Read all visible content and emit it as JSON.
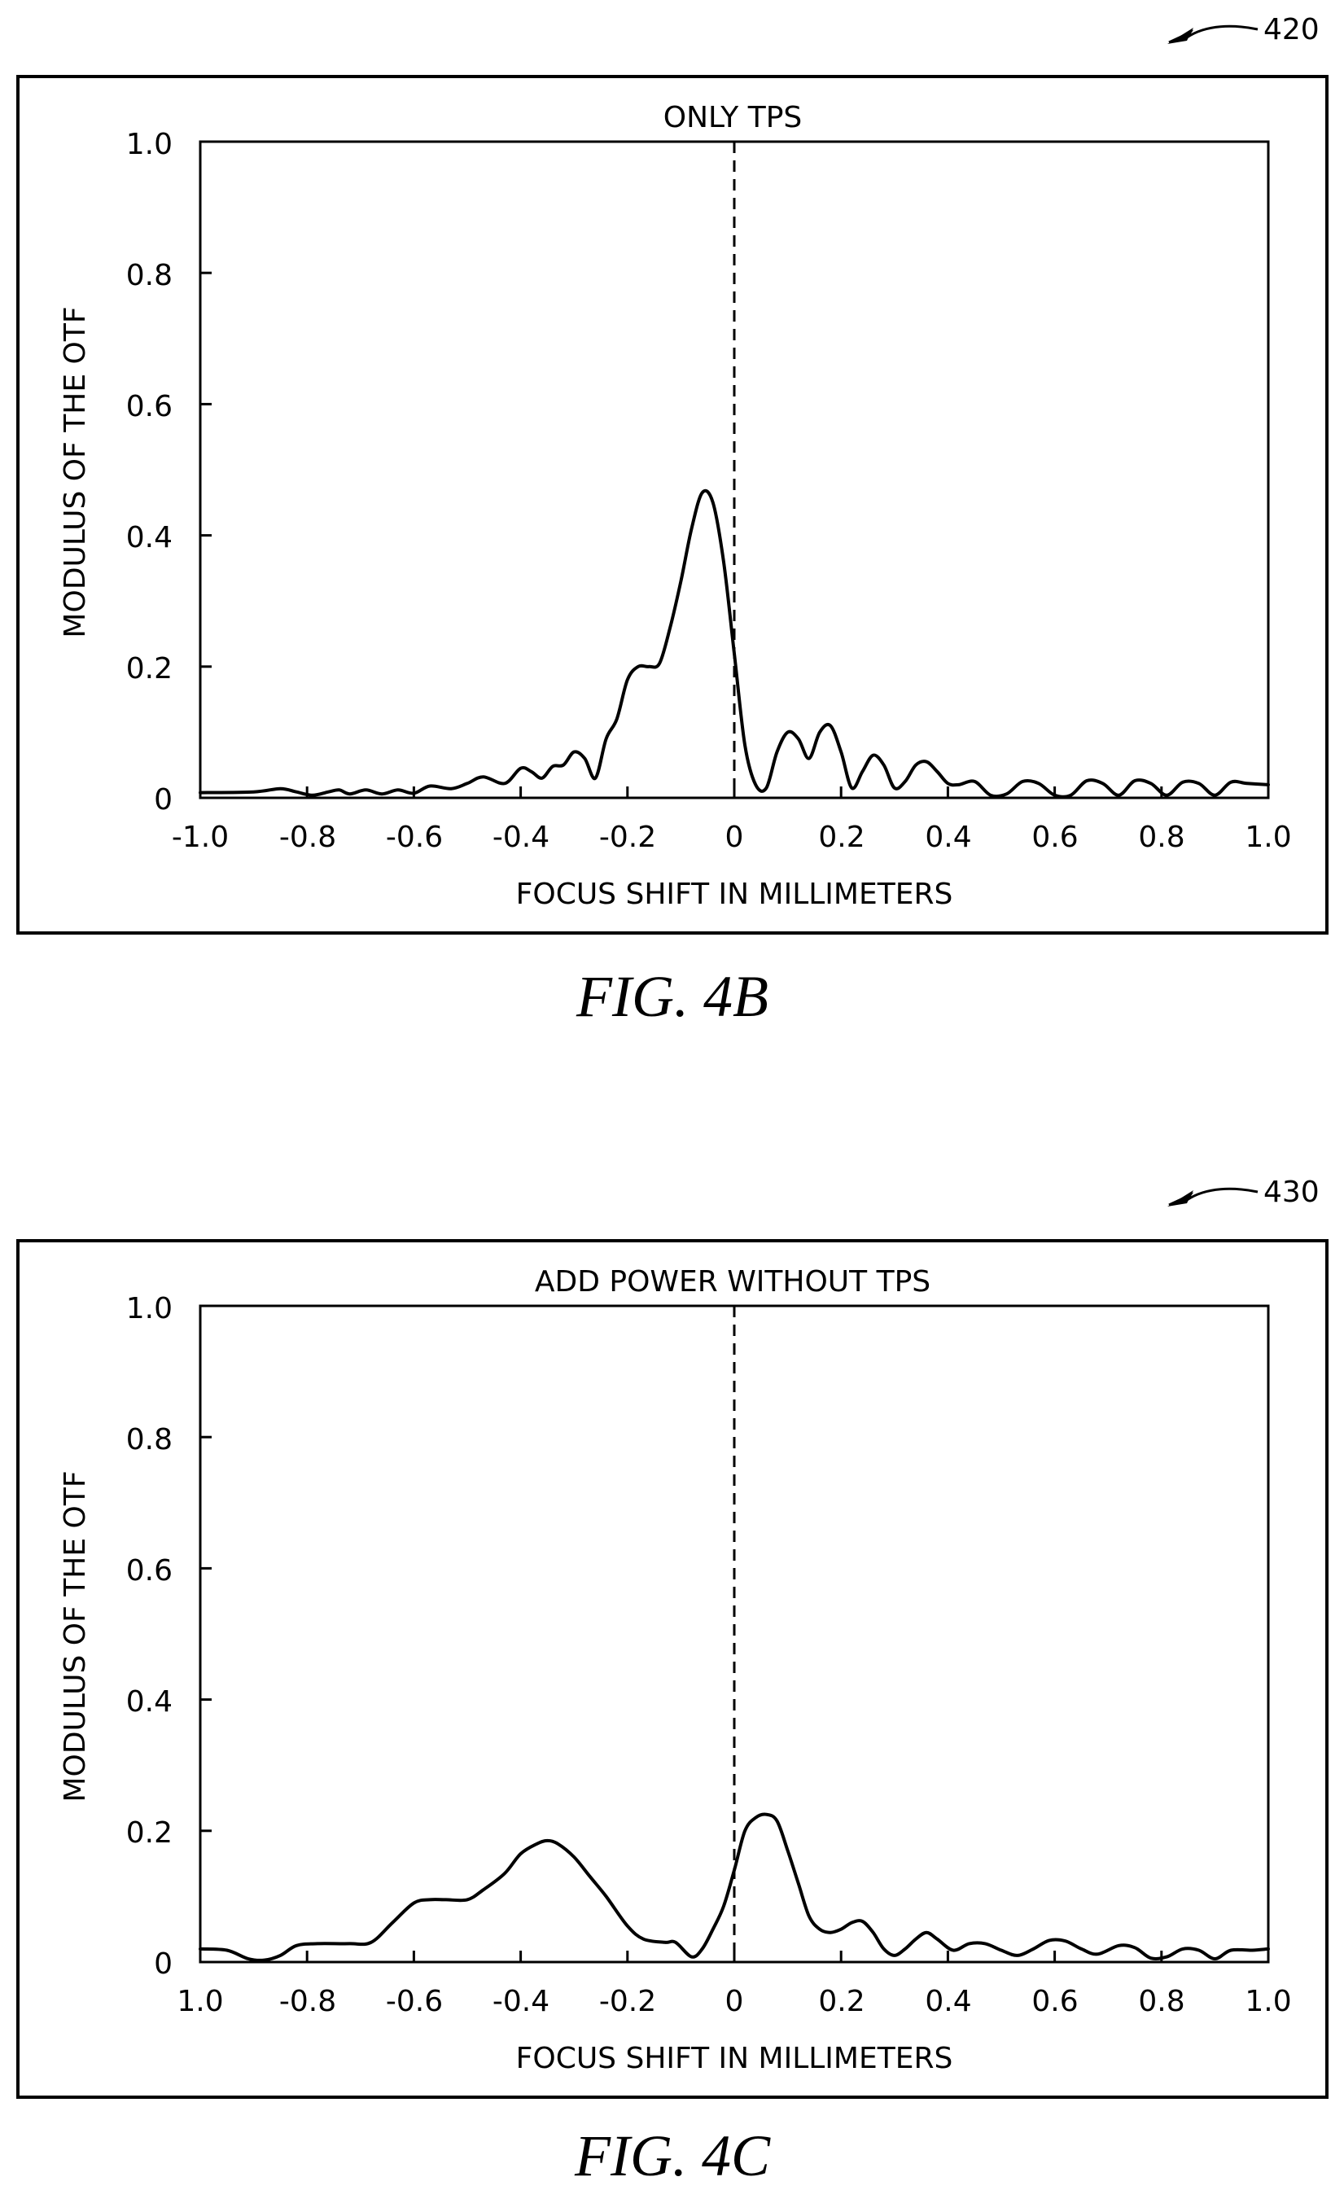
{
  "chart_data": [
    {
      "type": "line",
      "ref_numeral": "420",
      "title": "ONLY TPS",
      "xlabel": "FOCUS SHIFT IN MILLIMETERS",
      "ylabel": "MODULUS OF THE OTF",
      "xlim": [
        -1.0,
        1.0
      ],
      "ylim": [
        0,
        1.0
      ],
      "x_tick_labels": [
        "-1.0",
        "-0.8",
        "-0.6",
        "-0.4",
        "-0.2",
        "0",
        "0.2",
        "0.4",
        "0.6",
        "0.8",
        "1.0"
      ],
      "y_tick_labels": [
        "0",
        "0.2",
        "0.4",
        "0.6",
        "0.8",
        "1.0"
      ],
      "reference_line_x": 0,
      "figure_label": "FIG. 4B",
      "series": [
        {
          "x": [
            -1.0,
            -0.9,
            -0.85,
            -0.82,
            -0.79,
            -0.76,
            -0.74,
            -0.72,
            -0.69,
            -0.66,
            -0.63,
            -0.6,
            -0.57,
            -0.53,
            -0.5,
            -0.47,
            -0.43,
            -0.4,
            -0.38,
            -0.36,
            -0.34,
            -0.32,
            -0.3,
            -0.28,
            -0.26,
            -0.24,
            -0.22,
            -0.2,
            -0.18,
            -0.16,
            -0.14,
            -0.12,
            -0.1,
            -0.08,
            -0.06,
            -0.04,
            -0.02,
            0.0,
            0.02,
            0.04,
            0.06,
            0.08,
            0.1,
            0.12,
            0.14,
            0.16,
            0.18,
            0.2,
            0.22,
            0.24,
            0.26,
            0.28,
            0.3,
            0.32,
            0.34,
            0.36,
            0.38,
            0.4,
            0.42,
            0.45,
            0.48,
            0.51,
            0.54,
            0.57,
            0.6,
            0.63,
            0.66,
            0.69,
            0.72,
            0.75,
            0.78,
            0.81,
            0.84,
            0.87,
            0.9,
            0.93,
            0.96,
            1.0
          ],
          "y": [
            0.008,
            0.009,
            0.014,
            0.009,
            0.004,
            0.009,
            0.012,
            0.006,
            0.012,
            0.006,
            0.012,
            0.007,
            0.018,
            0.014,
            0.022,
            0.032,
            0.022,
            0.045,
            0.04,
            0.03,
            0.048,
            0.05,
            0.07,
            0.06,
            0.03,
            0.09,
            0.12,
            0.18,
            0.2,
            0.2,
            0.205,
            0.26,
            0.33,
            0.41,
            0.465,
            0.45,
            0.36,
            0.22,
            0.08,
            0.02,
            0.015,
            0.07,
            0.1,
            0.09,
            0.06,
            0.1,
            0.11,
            0.07,
            0.015,
            0.04,
            0.065,
            0.05,
            0.015,
            0.025,
            0.05,
            0.055,
            0.04,
            0.022,
            0.02,
            0.025,
            0.004,
            0.006,
            0.025,
            0.022,
            0.004,
            0.004,
            0.026,
            0.022,
            0.004,
            0.026,
            0.022,
            0.004,
            0.024,
            0.022,
            0.004,
            0.024,
            0.022,
            0.02
          ]
        }
      ]
    },
    {
      "type": "line",
      "ref_numeral": "430",
      "title": "ADD POWER WITHOUT TPS",
      "xlabel": "FOCUS SHIFT IN MILLIMETERS",
      "ylabel": "MODULUS OF THE OTF",
      "xlim": [
        -1.0,
        1.0
      ],
      "ylim": [
        0,
        1.0
      ],
      "x_tick_labels": [
        "1.0",
        "-0.8",
        "-0.6",
        "-0.4",
        "-0.2",
        "0",
        "0.2",
        "0.4",
        "0.6",
        "0.8",
        "1.0"
      ],
      "y_tick_labels": [
        "0",
        "0.2",
        "0.4",
        "0.6",
        "0.8",
        "1.0"
      ],
      "reference_line_x": 0,
      "figure_label": "FIG. 4C",
      "series": [
        {
          "x": [
            -1.0,
            -0.95,
            -0.91,
            -0.88,
            -0.85,
            -0.82,
            -0.78,
            -0.72,
            -0.68,
            -0.64,
            -0.6,
            -0.57,
            -0.54,
            -0.5,
            -0.47,
            -0.43,
            -0.4,
            -0.37,
            -0.35,
            -0.33,
            -0.3,
            -0.27,
            -0.24,
            -0.2,
            -0.17,
            -0.13,
            -0.11,
            -0.08,
            -0.06,
            -0.04,
            -0.02,
            0.0,
            0.02,
            0.04,
            0.06,
            0.08,
            0.1,
            0.12,
            0.14,
            0.16,
            0.18,
            0.2,
            0.22,
            0.24,
            0.26,
            0.28,
            0.3,
            0.32,
            0.34,
            0.36,
            0.38,
            0.41,
            0.44,
            0.47,
            0.5,
            0.53,
            0.56,
            0.59,
            0.62,
            0.65,
            0.68,
            0.72,
            0.75,
            0.78,
            0.81,
            0.84,
            0.87,
            0.9,
            0.93,
            0.97,
            1.0
          ],
          "y": [
            0.02,
            0.018,
            0.005,
            0.003,
            0.01,
            0.025,
            0.028,
            0.028,
            0.03,
            0.06,
            0.09,
            0.095,
            0.095,
            0.095,
            0.11,
            0.135,
            0.165,
            0.18,
            0.185,
            0.18,
            0.16,
            0.13,
            0.1,
            0.055,
            0.035,
            0.03,
            0.03,
            0.008,
            0.02,
            0.05,
            0.085,
            0.14,
            0.2,
            0.22,
            0.225,
            0.215,
            0.17,
            0.12,
            0.07,
            0.05,
            0.045,
            0.05,
            0.06,
            0.062,
            0.045,
            0.02,
            0.01,
            0.02,
            0.035,
            0.045,
            0.035,
            0.018,
            0.028,
            0.028,
            0.018,
            0.01,
            0.02,
            0.033,
            0.032,
            0.02,
            0.012,
            0.025,
            0.022,
            0.006,
            0.008,
            0.02,
            0.018,
            0.005,
            0.018,
            0.018,
            0.02
          ]
        }
      ]
    }
  ]
}
